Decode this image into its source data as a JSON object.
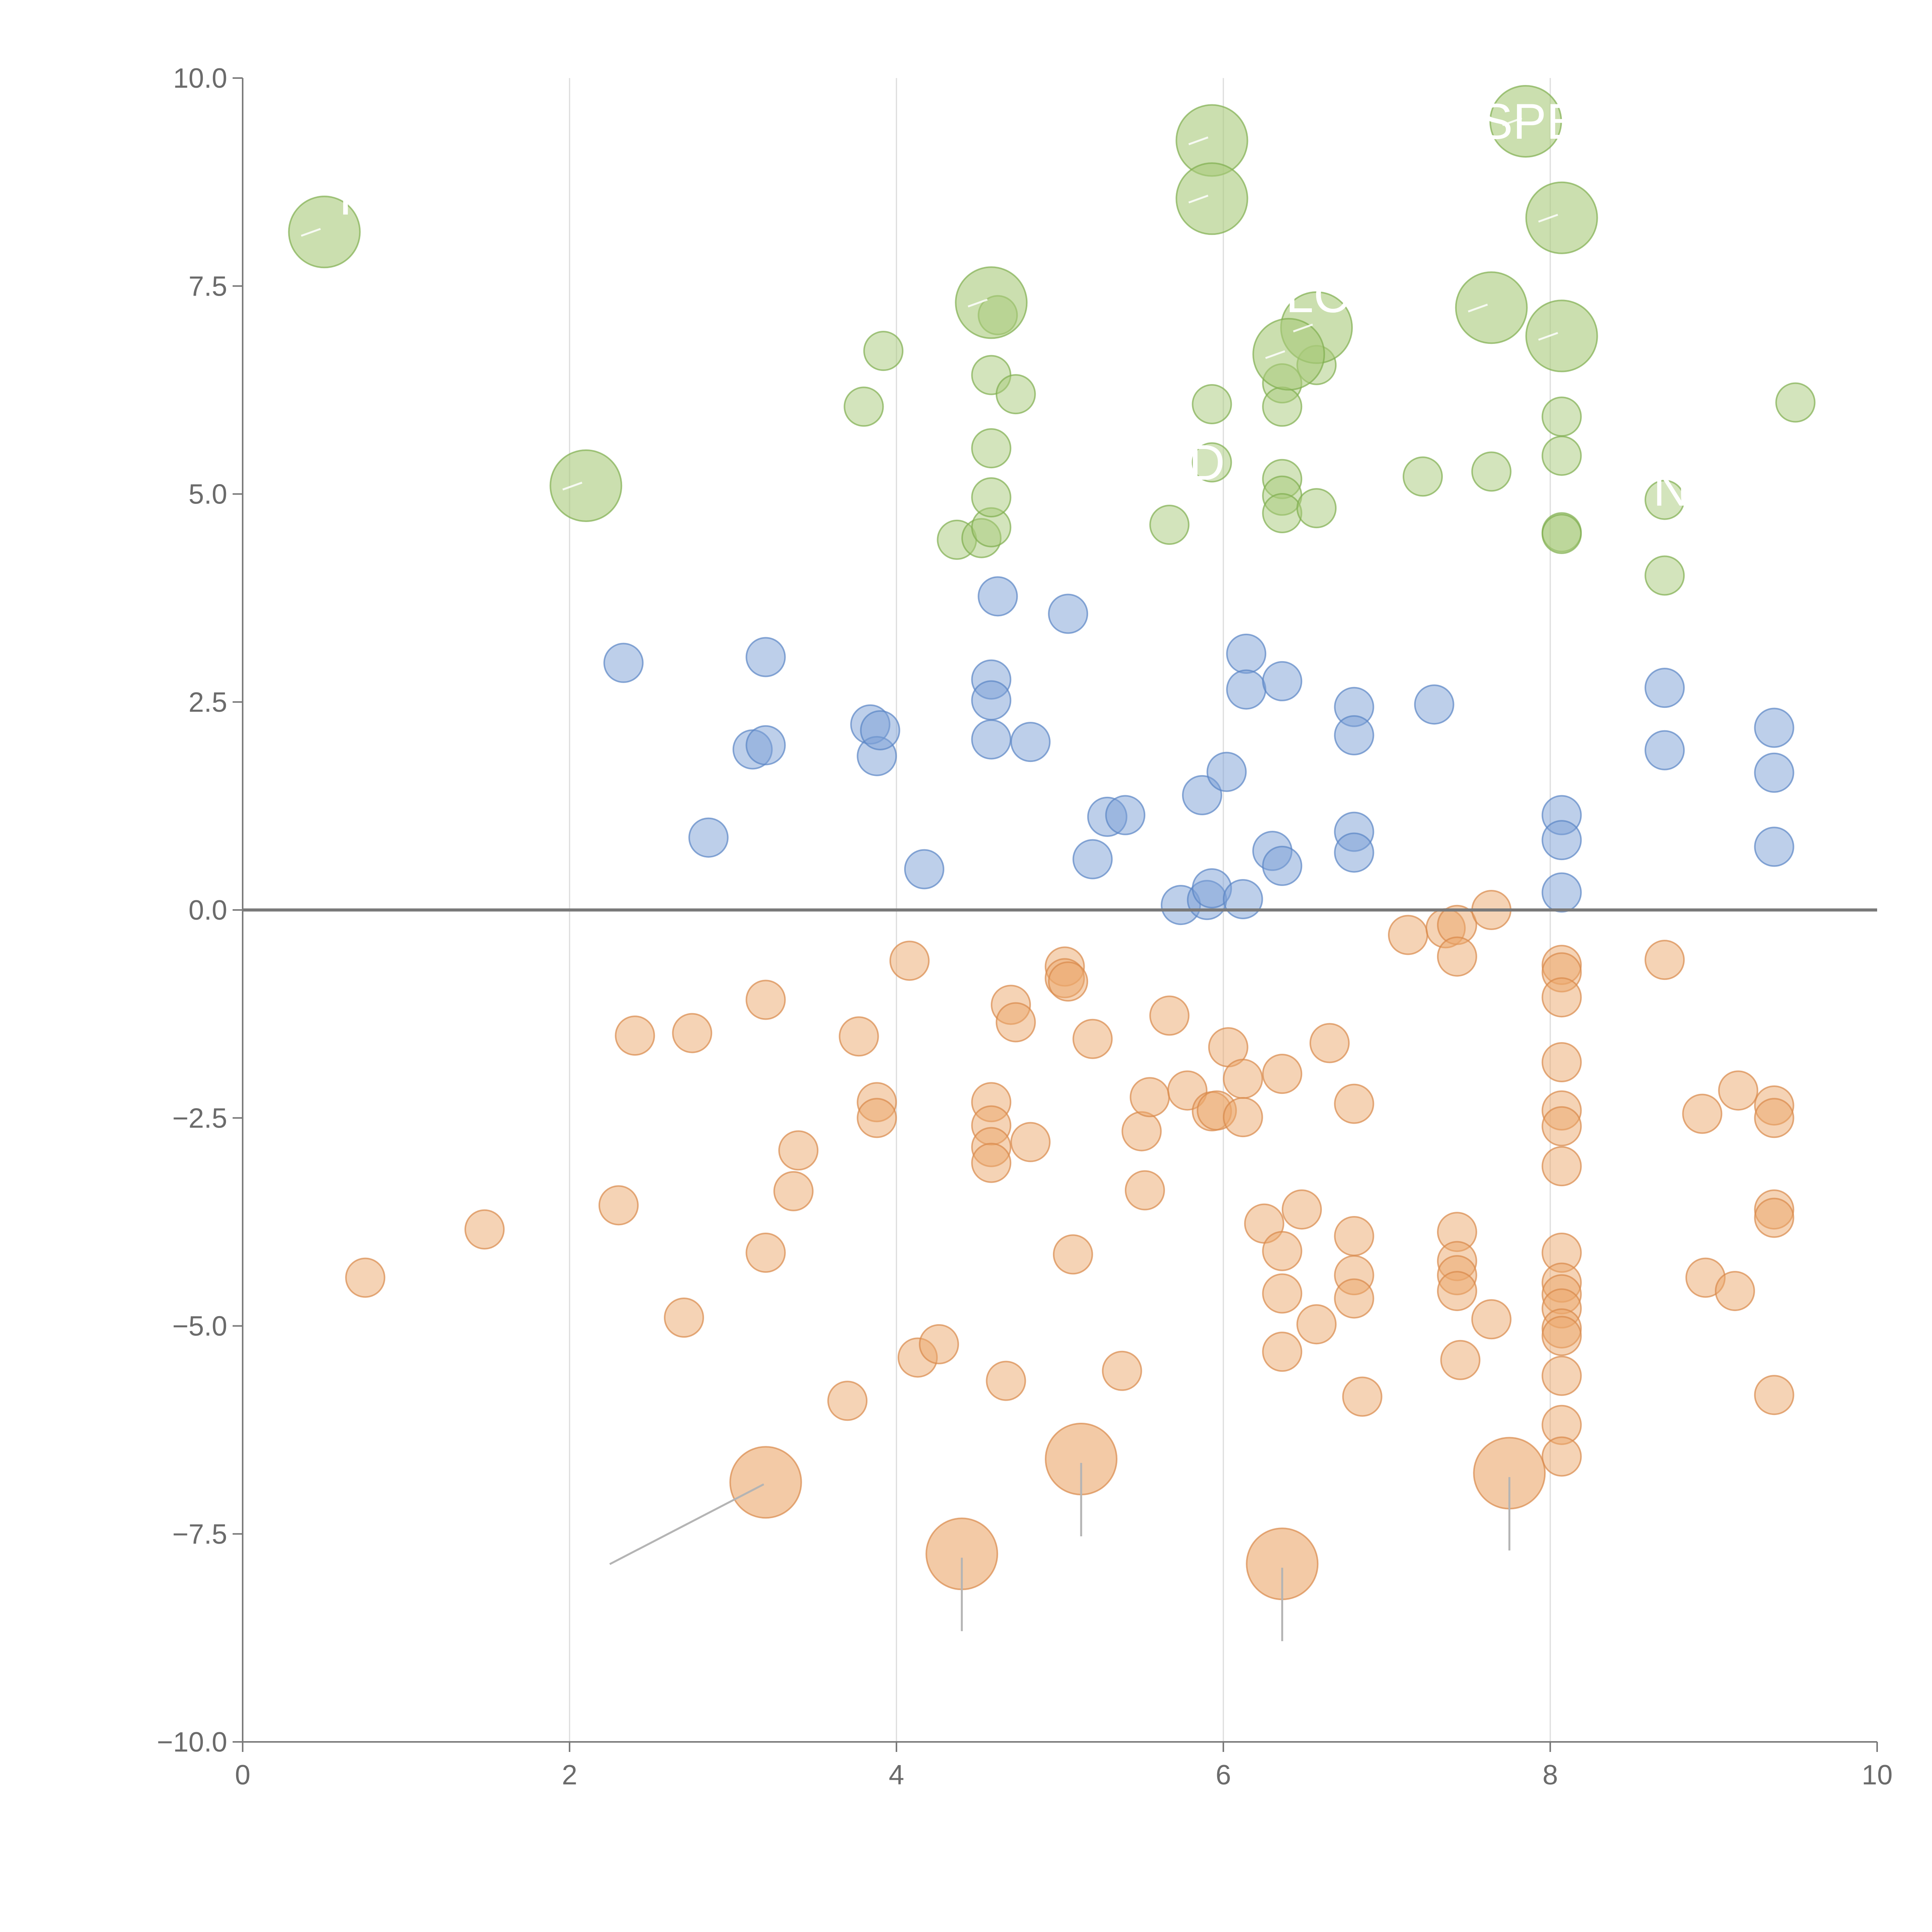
{
  "chart_data": {
    "type": "scatter",
    "title": "",
    "xlabel": "",
    "ylabel": "",
    "xlim": [
      0,
      10
    ],
    "ylim": [
      -10,
      10
    ],
    "x_ticks": [
      0,
      2,
      4,
      6,
      8,
      10
    ],
    "y_ticks": [
      -10,
      -7.5,
      -5,
      -2.5,
      0,
      2.5,
      5,
      7.5,
      10
    ],
    "x_tick_labels": [
      "0",
      "2",
      "4",
      "6",
      "8",
      "10"
    ],
    "y_tick_labels": [
      "−10.0",
      "−7.5",
      "−5.0",
      "−2.5",
      "0.0",
      "2.5",
      "5.0",
      "7.5",
      "10.0"
    ],
    "vertical_gridlines": [
      2,
      4,
      6,
      8
    ],
    "zero_line": true,
    "colors": {
      "green_fill": "#a8c97a",
      "green_stroke": "#7fae4f",
      "blue_fill": "#7b9fd6",
      "blue_stroke": "#5a84c4",
      "orange_fill": "#eba76b",
      "orange_stroke": "#d9894a"
    },
    "series": [
      {
        "name": "green",
        "color_key": "green",
        "points": [
          [
            3.8,
            6.05
          ],
          [
            3.92,
            6.72
          ],
          [
            4.37,
            4.45
          ],
          [
            4.52,
            4.47
          ],
          [
            4.58,
            4.6
          ],
          [
            4.58,
            4.96
          ],
          [
            4.58,
            5.55
          ],
          [
            4.58,
            6.43
          ],
          [
            4.62,
            7.15
          ],
          [
            4.73,
            6.2
          ],
          [
            5.67,
            4.63
          ],
          [
            5.93,
            6.08
          ],
          [
            5.93,
            5.38
          ],
          [
            6.36,
            6.33
          ],
          [
            6.36,
            6.05
          ],
          [
            6.36,
            5.18
          ],
          [
            6.36,
            4.98
          ],
          [
            6.36,
            4.77
          ],
          [
            6.57,
            6.55
          ],
          [
            6.57,
            4.83
          ],
          [
            7.22,
            5.21
          ],
          [
            7.64,
            5.27
          ],
          [
            8.07,
            5.93
          ],
          [
            8.07,
            5.46
          ],
          [
            8.07,
            4.54
          ],
          [
            8.07,
            4.52
          ],
          [
            8.7,
            4.93
          ],
          [
            8.7,
            4.02
          ],
          [
            9.5,
            6.1
          ]
        ]
      },
      {
        "name": "blue",
        "color_key": "blue",
        "points": [
          [
            2.33,
            2.97
          ],
          [
            2.85,
            0.87
          ],
          [
            3.12,
            1.93
          ],
          [
            3.2,
            3.04
          ],
          [
            3.2,
            1.98
          ],
          [
            3.84,
            2.23
          ],
          [
            3.88,
            1.85
          ],
          [
            3.9,
            2.16
          ],
          [
            4.17,
            0.49
          ],
          [
            4.58,
            2.77
          ],
          [
            4.58,
            2.52
          ],
          [
            4.58,
            2.05
          ],
          [
            4.62,
            3.77
          ],
          [
            4.82,
            2.02
          ],
          [
            5.05,
            3.56
          ],
          [
            5.2,
            0.61
          ],
          [
            5.29,
            1.12
          ],
          [
            5.4,
            1.14
          ],
          [
            5.74,
            0.06
          ],
          [
            5.87,
            1.38
          ],
          [
            5.9,
            0.12
          ],
          [
            5.93,
            0.26
          ],
          [
            6.02,
            1.66
          ],
          [
            6.12,
            0.13
          ],
          [
            6.14,
            3.08
          ],
          [
            6.14,
            2.65
          ],
          [
            6.3,
            0.71
          ],
          [
            6.36,
            2.75
          ],
          [
            6.36,
            0.53
          ],
          [
            6.8,
            2.44
          ],
          [
            6.8,
            2.1
          ],
          [
            6.8,
            0.94
          ],
          [
            6.8,
            0.69
          ],
          [
            7.29,
            2.47
          ],
          [
            8.07,
            1.14
          ],
          [
            8.07,
            0.84
          ],
          [
            8.07,
            0.21
          ],
          [
            8.7,
            2.67
          ],
          [
            8.7,
            1.92
          ],
          [
            9.37,
            2.19
          ],
          [
            9.37,
            1.65
          ],
          [
            9.37,
            0.76
          ]
        ]
      },
      {
        "name": "orange",
        "color_key": "orange",
        "points": [
          [
            0.75,
            -4.42
          ],
          [
            1.48,
            -3.84
          ],
          [
            2.3,
            -3.55
          ],
          [
            2.4,
            -1.51
          ],
          [
            2.7,
            -4.9
          ],
          [
            2.75,
            -1.48
          ],
          [
            3.2,
            -1.08
          ],
          [
            3.2,
            -4.12
          ],
          [
            3.37,
            -3.38
          ],
          [
            3.4,
            -2.89
          ],
          [
            3.7,
            -5.9
          ],
          [
            3.77,
            -1.52
          ],
          [
            3.88,
            -2.31
          ],
          [
            3.88,
            -2.5
          ],
          [
            4.08,
            -0.61
          ],
          [
            4.13,
            -5.38
          ],
          [
            4.26,
            -5.22
          ],
          [
            4.58,
            -2.31
          ],
          [
            4.58,
            -2.59
          ],
          [
            4.58,
            -2.85
          ],
          [
            4.58,
            -3.04
          ],
          [
            4.67,
            -5.66
          ],
          [
            4.7,
            -1.14
          ],
          [
            4.73,
            -1.35
          ],
          [
            4.82,
            -2.79
          ],
          [
            5.03,
            -0.68
          ],
          [
            5.03,
            -0.82
          ],
          [
            5.05,
            -0.86
          ],
          [
            5.08,
            -4.14
          ],
          [
            5.2,
            -1.55
          ],
          [
            5.38,
            -5.54
          ],
          [
            5.5,
            -2.66
          ],
          [
            5.52,
            -3.37
          ],
          [
            5.55,
            -2.25
          ],
          [
            5.67,
            -1.27
          ],
          [
            5.78,
            -2.17
          ],
          [
            5.93,
            -2.42
          ],
          [
            5.96,
            -2.41
          ],
          [
            6.03,
            -1.65
          ],
          [
            6.12,
            -2.03
          ],
          [
            6.12,
            -2.49
          ],
          [
            6.25,
            -3.77
          ],
          [
            6.36,
            -1.97
          ],
          [
            6.36,
            -4.1
          ],
          [
            6.36,
            -4.61
          ],
          [
            6.36,
            -5.31
          ],
          [
            6.48,
            -3.6
          ],
          [
            6.57,
            -4.98
          ],
          [
            6.65,
            -1.6
          ],
          [
            6.8,
            -2.33
          ],
          [
            6.8,
            -3.92
          ],
          [
            6.8,
            -4.39
          ],
          [
            6.8,
            -4.67
          ],
          [
            6.85,
            -5.85
          ],
          [
            7.13,
            -0.3
          ],
          [
            7.36,
            -0.22
          ],
          [
            7.43,
            -0.18
          ],
          [
            7.43,
            -0.56
          ],
          [
            7.43,
            -3.87
          ],
          [
            7.43,
            -4.22
          ],
          [
            7.43,
            -4.39
          ],
          [
            7.43,
            -4.58
          ],
          [
            7.45,
            -5.41
          ],
          [
            7.64,
            0.0
          ],
          [
            7.64,
            -4.92
          ],
          [
            8.07,
            -0.66
          ],
          [
            8.07,
            -0.75
          ],
          [
            8.07,
            -1.05
          ],
          [
            8.07,
            -1.83
          ],
          [
            8.07,
            -2.41
          ],
          [
            8.07,
            -2.6
          ],
          [
            8.07,
            -3.08
          ],
          [
            8.07,
            -4.12
          ],
          [
            8.07,
            -4.48
          ],
          [
            8.07,
            -4.62
          ],
          [
            8.07,
            -4.79
          ],
          [
            8.07,
            -5.03
          ],
          [
            8.07,
            -5.12
          ],
          [
            8.07,
            -5.6
          ],
          [
            8.07,
            -6.19
          ],
          [
            8.07,
            -6.57
          ],
          [
            8.7,
            -0.6
          ],
          [
            8.93,
            -2.45
          ],
          [
            8.95,
            -4.42
          ],
          [
            9.13,
            -4.58
          ],
          [
            9.15,
            -2.17
          ],
          [
            9.37,
            -2.35
          ],
          [
            9.37,
            -2.5
          ],
          [
            9.37,
            -3.6
          ],
          [
            9.37,
            -3.7
          ],
          [
            9.37,
            -5.83
          ]
        ]
      }
    ],
    "highlight_series": [
      {
        "name": "green-large",
        "color_key": "green",
        "points": [
          [
            0.5,
            8.15
          ],
          [
            2.1,
            5.1
          ],
          [
            4.58,
            7.3
          ],
          [
            5.93,
            9.25
          ],
          [
            5.93,
            8.55
          ],
          [
            6.57,
            7.0
          ],
          [
            6.4,
            6.68
          ],
          [
            7.64,
            7.24
          ],
          [
            7.85,
            9.48
          ],
          [
            8.07,
            8.32
          ],
          [
            8.07,
            6.9
          ]
        ],
        "visible_labels": [
          "SPE",
          "LC",
          "D",
          "N",
          "T"
        ]
      },
      {
        "name": "orange-large",
        "color_key": "orange",
        "points": [
          [
            3.2,
            -6.88
          ],
          [
            4.4,
            -7.74
          ],
          [
            5.13,
            -6.6
          ],
          [
            6.36,
            -7.86
          ],
          [
            7.75,
            -6.77
          ]
        ]
      }
    ]
  }
}
